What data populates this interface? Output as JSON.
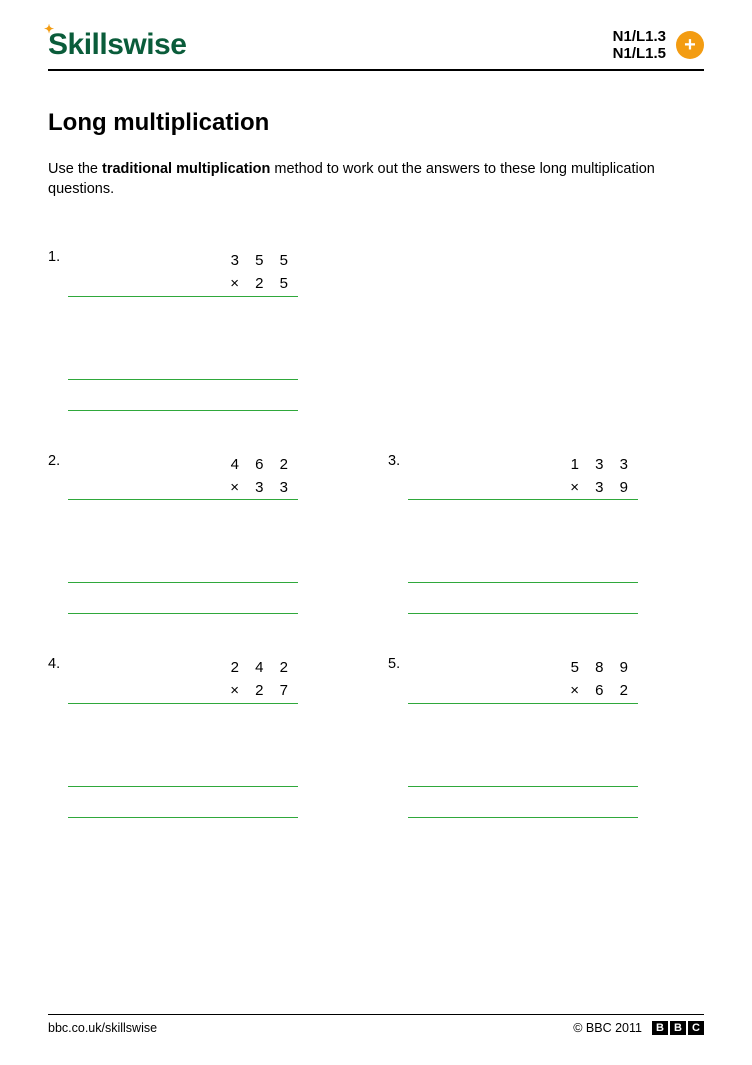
{
  "header": {
    "logo_text": "Skillswise",
    "code_1": "N1/L1.3",
    "code_2": "N1/L1.5"
  },
  "title": "Long multiplication",
  "instructions": {
    "pre": "Use the ",
    "bold": "traditional multiplication",
    "post": " method to work out the answers to these long multiplication questions."
  },
  "styling": {
    "line_color": "#2fa83b",
    "logo_color": "#0a5c3a",
    "accent_color": "#f39c12",
    "text_color": "#000000",
    "background": "#ffffff",
    "title_fontsize": 24,
    "body_fontsize": 14.5,
    "operand_letter_spacing": 6,
    "problem_width": 280,
    "line_width": 230,
    "workspace_height": 82
  },
  "problems": [
    {
      "n": "1.",
      "a": "3 5 5",
      "b": "× 2 5"
    },
    {
      "n": "2.",
      "a": "4 6 2",
      "b": "× 3 3"
    },
    {
      "n": "3.",
      "a": "1 3 3",
      "b": "× 3 9"
    },
    {
      "n": "4.",
      "a": "2 4 2",
      "b": "× 2 7"
    },
    {
      "n": "5.",
      "a": "5 8 9",
      "b": "× 6 2"
    }
  ],
  "footer": {
    "url": "bbc.co.uk/skillswise",
    "copyright": "© BBC 2011",
    "bbc": [
      "B",
      "B",
      "C"
    ]
  }
}
